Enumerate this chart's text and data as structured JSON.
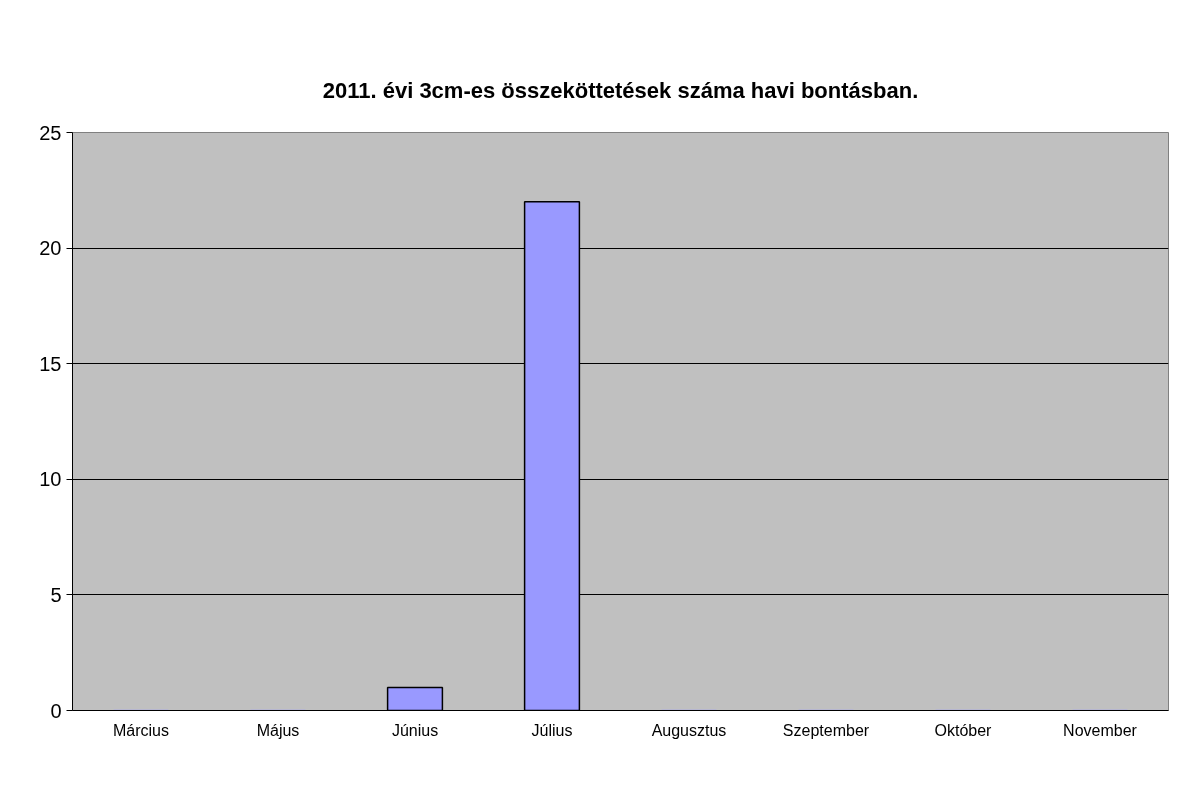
{
  "chart_data": {
    "type": "bar",
    "title": "2011. évi 3cm-es összeköttetések száma havi bontásban.",
    "categories": [
      "Március",
      "Május",
      "Június",
      "Július",
      "Augusztus",
      "Szeptember",
      "Október",
      "November"
    ],
    "values": [
      0,
      0,
      1,
      22,
      0,
      0,
      0,
      0
    ],
    "color": "#9999ff",
    "ylim": [
      0,
      25
    ],
    "yticks": [
      0,
      5,
      10,
      15,
      20,
      25
    ],
    "grid": "y"
  }
}
